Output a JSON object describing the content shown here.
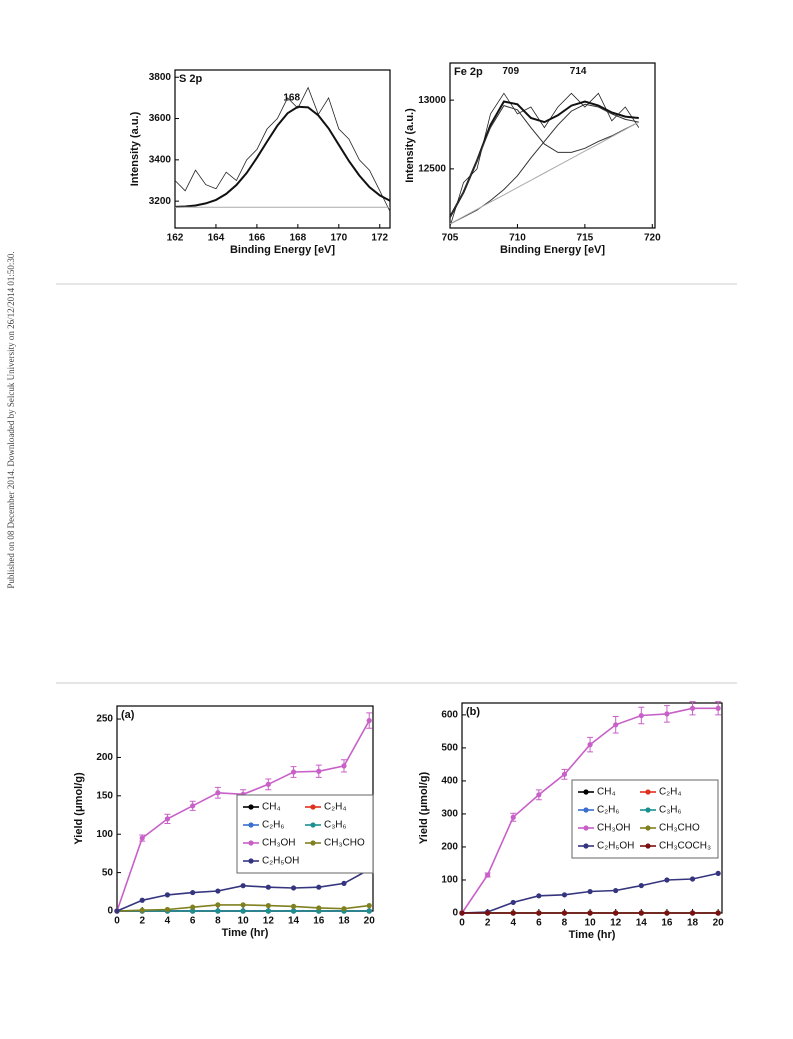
{
  "sidebar": "Published on 08 December 2014. Downloaded by Selcuk University on 26/12/2014 01:50:30.",
  "chart_data": [
    {
      "type": "line",
      "panel_label": "S 2p",
      "xlabel": "Binding Energy [eV]",
      "ylabel": "Intensity (a.u.)",
      "x": [
        162,
        162.5,
        163,
        163.5,
        164,
        164.5,
        165,
        165.5,
        166,
        166.5,
        167,
        167.5,
        168,
        168.5,
        169,
        169.5,
        170,
        170.5,
        171,
        171.5,
        172,
        172.5
      ],
      "series": [
        {
          "color": "#222222",
          "width": 0.8,
          "values": [
            3300,
            3250,
            3350,
            3280,
            3260,
            3340,
            3300,
            3400,
            3450,
            3550,
            3600,
            3700,
            3650,
            3750,
            3620,
            3700,
            3550,
            3500,
            3400,
            3350,
            3250,
            3150
          ]
        },
        {
          "color": "#111111",
          "width": 2,
          "values": [
            3172,
            3174,
            3179,
            3189,
            3206,
            3235,
            3278,
            3337,
            3410,
            3489,
            3566,
            3626,
            3657,
            3654,
            3615,
            3552,
            3473,
            3394,
            3324,
            3268,
            3228,
            3202
          ]
        },
        {
          "color": "#aaaaaa",
          "width": 1,
          "values": [
            3170,
            3170,
            3170,
            3170,
            3170,
            3170,
            3170,
            3170,
            3170,
            3170,
            3170,
            3170,
            3170,
            3170,
            3170,
            3170,
            3170,
            3170,
            3170,
            3170,
            3170,
            3170
          ]
        }
      ],
      "annotations": [
        {
          "text": "168",
          "x": 167.7,
          "y": 3700
        }
      ],
      "xlim": [
        162,
        172.5
      ],
      "ylim": [
        3070,
        3835
      ],
      "xticks": [
        162,
        164,
        166,
        168,
        170,
        172
      ],
      "yticks": [
        3200,
        3400,
        3600,
        3800
      ]
    },
    {
      "type": "line",
      "panel_label": "Fe 2p",
      "xlabel": "Binding Energy [eV]",
      "ylabel": "Intensity (a.u.)",
      "x": [
        705,
        706,
        707,
        708,
        709,
        710,
        711,
        712,
        713,
        714,
        715,
        716,
        717,
        718,
        719
      ],
      "series": [
        {
          "color": "#222222",
          "width": 0.8,
          "values": [
            12080,
            12400,
            12500,
            12900,
            13050,
            12900,
            12950,
            12800,
            12950,
            13050,
            12950,
            13050,
            12850,
            12950,
            12800
          ]
        },
        {
          "color": "#111111",
          "width": 2,
          "values": [
            12150,
            12330,
            12560,
            12820,
            12990,
            12970,
            12870,
            12840,
            12890,
            12960,
            12990,
            12960,
            12910,
            12880,
            12870
          ]
        },
        {
          "color": "#333333",
          "width": 1,
          "values": [
            12150,
            12330,
            12560,
            12800,
            12960,
            12930,
            12800,
            12680,
            12620,
            12620,
            12650,
            12700,
            12740,
            12790,
            12840
          ]
        },
        {
          "color": "#333333",
          "width": 1,
          "values": [
            12100,
            12150,
            12200,
            12270,
            12350,
            12450,
            12580,
            12700,
            12820,
            12920,
            12970,
            12950,
            12900,
            12860,
            12840
          ]
        },
        {
          "color": "#aaaaaa",
          "width": 1,
          "values": [
            12100,
            12153,
            12206,
            12259,
            12311,
            12364,
            12417,
            12470,
            12523,
            12576,
            12629,
            12681,
            12734,
            12787,
            12840
          ]
        }
      ],
      "annotations": [
        {
          "text": "709",
          "x": 709.5,
          "y": 13210
        },
        {
          "text": "714",
          "x": 714.5,
          "y": 13210
        }
      ],
      "xlim": [
        705,
        720.2
      ],
      "ylim": [
        12070,
        13270
      ],
      "xticks": [
        705,
        710,
        715,
        720
      ],
      "yticks": [
        12500,
        13000
      ]
    },
    {
      "type": "line",
      "panel_label": "(a)",
      "xlabel": "Time (hr)",
      "ylabel": "Yield (μmol/g)",
      "legend": true,
      "markers": true,
      "x": [
        0,
        2,
        4,
        6,
        8,
        10,
        12,
        14,
        16,
        18,
        20
      ],
      "series": [
        {
          "name": "CH₄",
          "color": "#000000",
          "values": [
            0,
            0,
            0,
            0,
            0,
            0,
            0,
            0,
            0,
            0,
            0
          ]
        },
        {
          "name": "C₂H₄",
          "color": "#e0301e",
          "values": [
            0,
            0,
            0,
            0,
            0,
            0,
            0,
            0,
            0,
            0,
            0
          ]
        },
        {
          "name": "C₂H₆",
          "color": "#3a6fd0",
          "values": [
            0,
            0,
            0,
            0,
            0,
            0,
            0,
            0,
            0,
            0,
            0
          ]
        },
        {
          "name": "C₃H₆",
          "color": "#1a9090",
          "values": [
            0,
            0,
            0,
            0,
            0,
            0,
            0,
            0,
            0,
            0,
            0
          ]
        },
        {
          "name": "CH₃OH",
          "color": "#c860c8",
          "values": [
            0,
            95,
            120,
            137,
            154,
            152,
            165,
            181,
            182,
            189,
            248
          ],
          "errors": [
            0,
            4,
            6,
            6,
            7,
            6,
            7,
            7,
            8,
            8,
            10
          ]
        },
        {
          "name": "CH₃CHO",
          "color": "#808020",
          "values": [
            0,
            1,
            2,
            5,
            8,
            8,
            7,
            6,
            4,
            3,
            7
          ]
        },
        {
          "name": "C₂H₅OH",
          "color": "#35357f",
          "values": [
            0,
            14,
            21,
            24,
            26,
            33,
            31,
            30,
            31,
            36,
            54
          ]
        }
      ],
      "xlim": [
        0,
        20.3
      ],
      "ylim": [
        0,
        267
      ],
      "xticks": [
        0,
        2,
        4,
        6,
        8,
        10,
        12,
        14,
        16,
        18,
        20
      ],
      "yticks": [
        0,
        50,
        100,
        150,
        200,
        250
      ]
    },
    {
      "type": "line",
      "panel_label": "(b)",
      "xlabel": "Time (hr)",
      "ylabel": "Yield (μmol/g)",
      "legend": true,
      "markers": true,
      "x": [
        0,
        2,
        4,
        6,
        8,
        10,
        12,
        14,
        16,
        18,
        20
      ],
      "series": [
        {
          "name": "CH₄",
          "color": "#000000",
          "values": [
            0,
            0,
            0,
            0,
            0,
            0,
            0,
            0,
            0,
            0,
            0
          ]
        },
        {
          "name": "C₂H₄",
          "color": "#e0301e",
          "values": [
            0,
            0,
            0,
            0,
            0,
            0,
            0,
            0,
            0,
            0,
            0
          ]
        },
        {
          "name": "C₂H₆",
          "color": "#3a6fd0",
          "values": [
            0,
            0,
            0,
            0,
            0,
            0,
            0,
            0,
            0,
            0,
            0
          ]
        },
        {
          "name": "C₃H₆",
          "color": "#1a9090",
          "values": [
            0,
            0,
            0,
            0,
            0,
            0,
            0,
            0,
            0,
            0,
            0
          ]
        },
        {
          "name": "CH₃OH",
          "color": "#c860c8",
          "values": [
            0,
            115,
            290,
            358,
            420,
            510,
            570,
            598,
            603,
            620,
            620
          ],
          "errors": [
            0,
            6,
            12,
            15,
            15,
            22,
            25,
            25,
            25,
            20,
            20
          ]
        },
        {
          "name": "CH₃CHO",
          "color": "#808020",
          "values": [
            0,
            0,
            0,
            0,
            0,
            0,
            0,
            0,
            0,
            0,
            0
          ]
        },
        {
          "name": "C₂H₅OH",
          "color": "#35357f",
          "values": [
            0,
            3,
            32,
            52,
            55,
            65,
            68,
            83,
            100,
            103,
            120
          ]
        },
        {
          "name": "CH₃COCH₃",
          "color": "#7a1010",
          "values": [
            0,
            0,
            0,
            0,
            0,
            0,
            0,
            0,
            0,
            0,
            0
          ]
        }
      ],
      "xlim": [
        0,
        20.3
      ],
      "ylim": [
        0,
        636
      ],
      "xticks": [
        0,
        2,
        4,
        6,
        8,
        10,
        12,
        14,
        16,
        18,
        20
      ],
      "yticks": [
        0,
        100,
        200,
        300,
        400,
        500,
        600
      ]
    }
  ]
}
